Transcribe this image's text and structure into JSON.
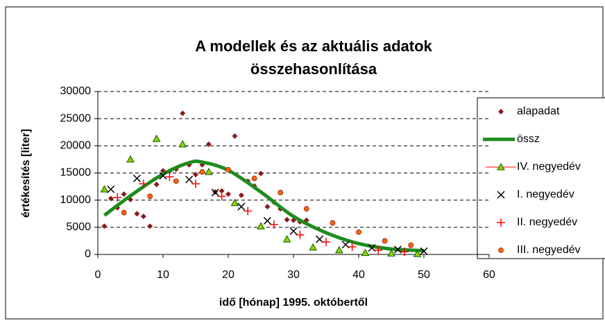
{
  "chart_data": {
    "type": "scatter",
    "title": [
      "A modellek és az aktuális adatok",
      "összehasonlítása"
    ],
    "xlabel": "idő [hónap] 1995. októbertől",
    "ylabel": "értékesítés [liter]",
    "xlim": [
      0,
      60
    ],
    "xticks": [
      0,
      10,
      20,
      30,
      40,
      50,
      60
    ],
    "ylim": [
      0,
      30000
    ],
    "yticks": [
      0,
      5000,
      10000,
      15000,
      20000,
      25000,
      30000
    ],
    "grid": true,
    "legend": "right",
    "series": [
      {
        "name": "alapadat",
        "color": "#8b1a1a",
        "marker": "diamond",
        "x": [
          1,
          2,
          3,
          4,
          5,
          6,
          7,
          8,
          9,
          10,
          11,
          12,
          13,
          14,
          15,
          16,
          17,
          18,
          19,
          20,
          21,
          22,
          23,
          24,
          25,
          26,
          27,
          28,
          29,
          30,
          31,
          32
        ],
        "values": [
          5200,
          10300,
          8600,
          11100,
          10100,
          7500,
          7000,
          5200,
          12900,
          15400,
          15300,
          15700,
          26000,
          16500,
          14700,
          16500,
          20300,
          11500,
          11700,
          11100,
          21800,
          10900,
          13500,
          12600,
          14900,
          8800,
          9600,
          8400,
          6400,
          6300,
          6000,
          6300
        ]
      },
      {
        "name": "össz",
        "color": "#1e8c1e",
        "marker": "line",
        "x": [
          1,
          5,
          10,
          14,
          16,
          20,
          25,
          30,
          35,
          40,
          45,
          50
        ],
        "values": [
          7200,
          10800,
          14800,
          16900,
          17000,
          15500,
          11500,
          7000,
          4000,
          2000,
          1000,
          700
        ]
      },
      {
        "name": "IV. negyedév",
        "color": "#99cc00",
        "marker": "triangle",
        "x": [
          1,
          5,
          9,
          13,
          17,
          21,
          25,
          29,
          33,
          37,
          41,
          45,
          49
        ],
        "values": [
          12000,
          17500,
          21300,
          20300,
          15200,
          9500,
          5200,
          2800,
          1300,
          800,
          300,
          200,
          100
        ]
      },
      {
        "name": "I. negyedév",
        "color": "#000000",
        "marker": "x",
        "x": [
          2,
          6,
          10,
          14,
          18,
          22,
          26,
          30,
          34,
          38,
          42,
          46,
          50
        ],
        "values": [
          12000,
          14000,
          14500,
          13800,
          11400,
          8800,
          6200,
          4300,
          2800,
          1800,
          1200,
          900,
          600
        ]
      },
      {
        "name": "II. negyedév",
        "color": "#ff0000",
        "marker": "plus",
        "x": [
          3,
          7,
          11,
          15,
          19,
          23,
          27,
          31,
          35,
          39,
          43,
          47
        ],
        "values": [
          10500,
          13000,
          14300,
          13000,
          10700,
          8000,
          5500,
          3600,
          2300,
          1400,
          800,
          500
        ]
      },
      {
        "name": "III. negyedév",
        "color": "#ff6600",
        "marker": "circle",
        "x": [
          4,
          8,
          12,
          16,
          20,
          24,
          28,
          32,
          36,
          40,
          44,
          48
        ],
        "values": [
          7700,
          10700,
          13500,
          15200,
          15600,
          14000,
          11400,
          8400,
          5800,
          4100,
          2500,
          1700
        ]
      }
    ]
  }
}
